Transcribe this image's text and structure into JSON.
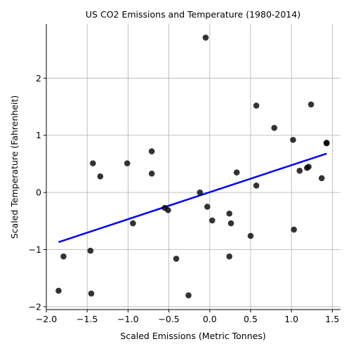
{
  "chart_data": {
    "type": "scatter",
    "title": "US CO2 Emissions and Temperature (1980-2014)",
    "xlabel": "Scaled Emissions (Metric Tonnes)",
    "ylabel": "Scaled Temperature (Fahrenheit)",
    "xlim": [
      -2.0,
      1.6
    ],
    "ylim": [
      -2.05,
      2.95
    ],
    "xticks": [
      -2.0,
      -1.5,
      -1.0,
      -0.5,
      0.0,
      0.5,
      1.0,
      1.5
    ],
    "xtick_labels": [
      "−2.0",
      "−1.5",
      "−1.0",
      "−0.5",
      "0.0",
      "0.5",
      "1.0",
      "1.5"
    ],
    "yticks": [
      -2,
      -1,
      0,
      1,
      2
    ],
    "ytick_labels": [
      "−2",
      "−1",
      "0",
      "1",
      "2"
    ],
    "grid": true,
    "points": {
      "x": [
        -1.85,
        -1.79,
        -1.46,
        -1.45,
        -1.43,
        -1.34,
        -1.01,
        -0.94,
        -0.71,
        -0.71,
        -0.55,
        -0.51,
        -0.41,
        -0.26,
        -0.12,
        -0.05,
        -0.03,
        0.03,
        0.24,
        0.24,
        0.26,
        0.33,
        0.5,
        0.57,
        0.57,
        0.79,
        1.02,
        1.03,
        1.1,
        1.19,
        1.21,
        1.24,
        1.37,
        1.43,
        1.43
      ],
      "y": [
        -1.72,
        -1.12,
        -1.02,
        -1.77,
        0.51,
        0.28,
        0.51,
        -0.54,
        0.72,
        0.33,
        -0.27,
        -0.31,
        -1.16,
        -1.8,
        0.0,
        2.71,
        -0.25,
        -0.49,
        -0.37,
        -1.12,
        -0.54,
        0.35,
        -0.76,
        0.12,
        1.52,
        1.13,
        0.92,
        -0.65,
        0.38,
        0.43,
        0.45,
        1.54,
        0.25,
        0.87,
        0.86
      ]
    },
    "fit_line": {
      "x": [
        -1.85,
        1.43
      ],
      "y": [
        -0.87,
        0.68
      ],
      "color": "#0000ff"
    },
    "point_color": "#000000"
  }
}
